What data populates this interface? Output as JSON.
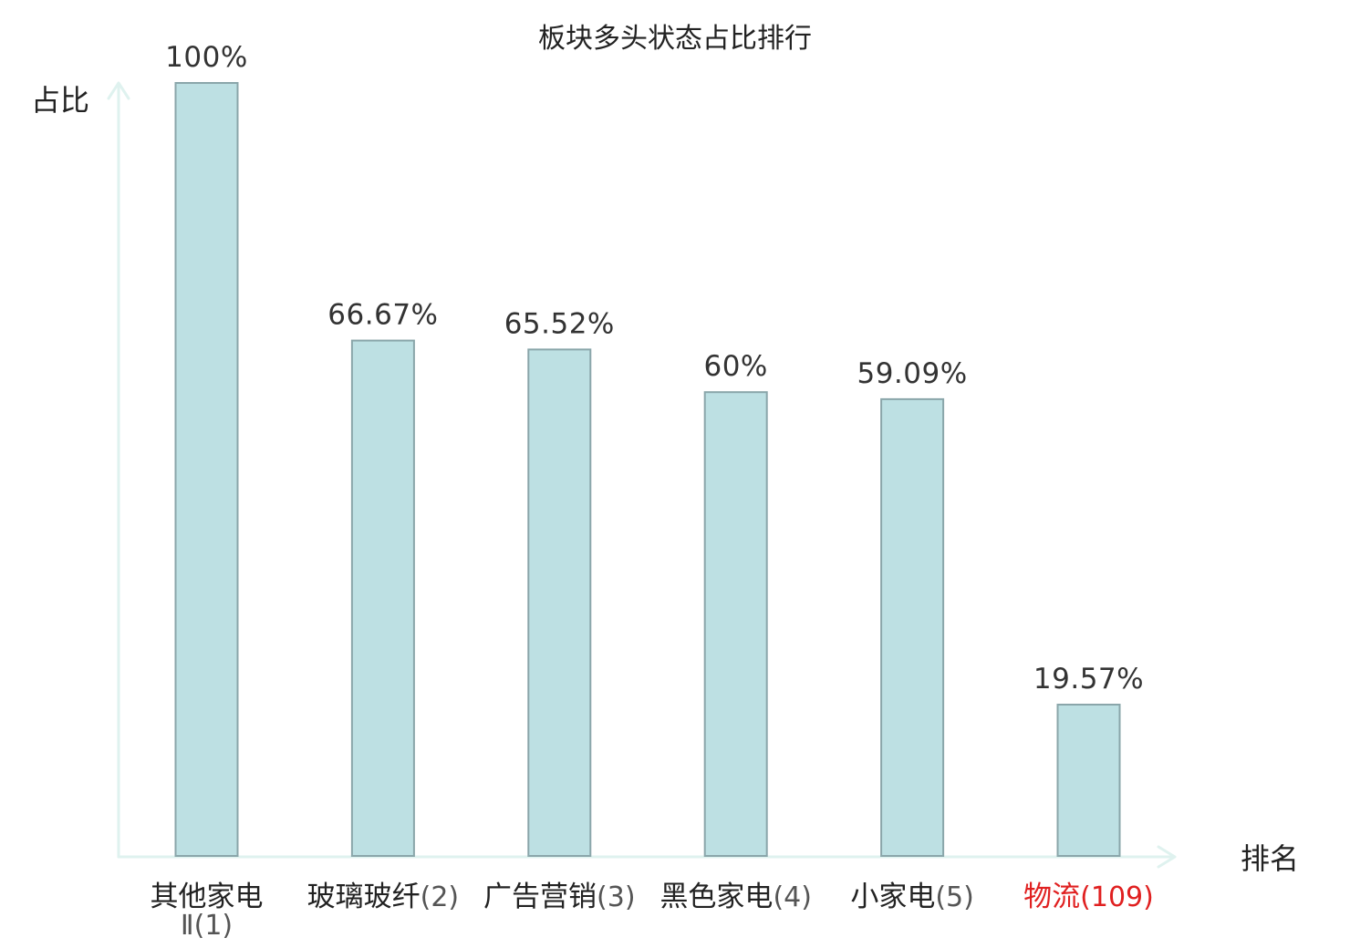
{
  "chart_data": {
    "type": "bar",
    "title": "板块多头状态占比排行",
    "xlabel": "排名",
    "ylabel": "占比",
    "categories": [
      {
        "name": "其他家电Ⅱ",
        "rank": "(1)",
        "highlight": false
      },
      {
        "name": "玻璃玻纤",
        "rank": "(2)",
        "highlight": false
      },
      {
        "name": "广告营销",
        "rank": "(3)",
        "highlight": false
      },
      {
        "name": "黑色家电",
        "rank": "(4)",
        "highlight": false
      },
      {
        "name": "小家电",
        "rank": "(5)",
        "highlight": false
      },
      {
        "name": "物流",
        "rank": "(109)",
        "highlight": true
      }
    ],
    "values": [
      100,
      66.67,
      65.52,
      60,
      59.09,
      19.57
    ],
    "value_labels": [
      "100%",
      "66.67%",
      "65.52%",
      "60%",
      "59.09%",
      "19.57%"
    ],
    "ylim": [
      0,
      100
    ],
    "grid": false,
    "colors": {
      "bar_fill": "#bde0e3",
      "bar_stroke": "#8aa6aa",
      "axis": "#dff2ef",
      "highlight_text": "#e02020",
      "label_text": "#222222",
      "rank_text": "#555555"
    }
  }
}
